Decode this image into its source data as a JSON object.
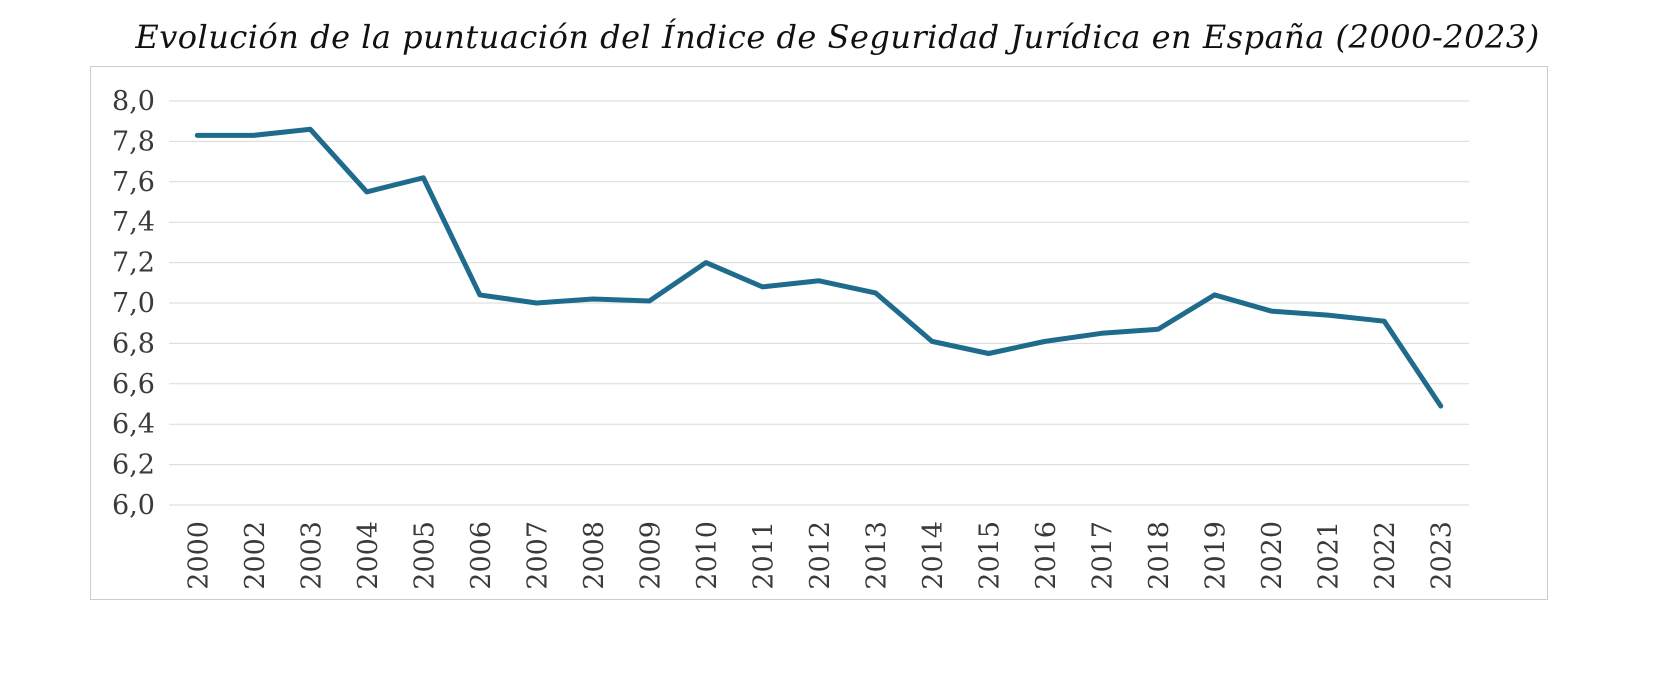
{
  "chart_data": {
    "type": "line",
    "title": "Evolución de la puntuación del Índice de Seguridad Jurídica en España (2000-2023)",
    "categories": [
      "2000",
      "2002",
      "2003",
      "2004",
      "2005",
      "2006",
      "2007",
      "2008",
      "2009",
      "2010",
      "2011",
      "2012",
      "2013",
      "2014",
      "2015",
      "2016",
      "2017",
      "2018",
      "2019",
      "2020",
      "2021",
      "2022",
      "2023"
    ],
    "series": [
      {
        "name": "Índice de Seguridad Jurídica",
        "values": [
          7.83,
          7.83,
          7.86,
          7.55,
          7.62,
          7.04,
          7.0,
          7.02,
          7.01,
          7.2,
          7.08,
          7.11,
          7.05,
          6.81,
          6.75,
          6.81,
          6.85,
          6.87,
          7.04,
          6.96,
          6.94,
          6.91,
          6.49
        ]
      }
    ],
    "xlabel": "",
    "ylabel": "",
    "ylim": [
      6.0,
      8.0
    ],
    "ytick_step": 0.2,
    "ytick_labels": [
      "8,0",
      "7,8",
      "7,6",
      "7,4",
      "7,2",
      "7,0",
      "6,8",
      "6,6",
      "6,4",
      "6,2",
      "6,0"
    ],
    "decimal_separator": ",",
    "grid": "horizontal",
    "legend": "none",
    "x_label_rotation": -90,
    "line_color": "#1f6b8c",
    "gridline_color": "#d9d9d9",
    "frame_border_color": "#cdcdcd",
    "tick_text_color": "#3a3a3a"
  }
}
